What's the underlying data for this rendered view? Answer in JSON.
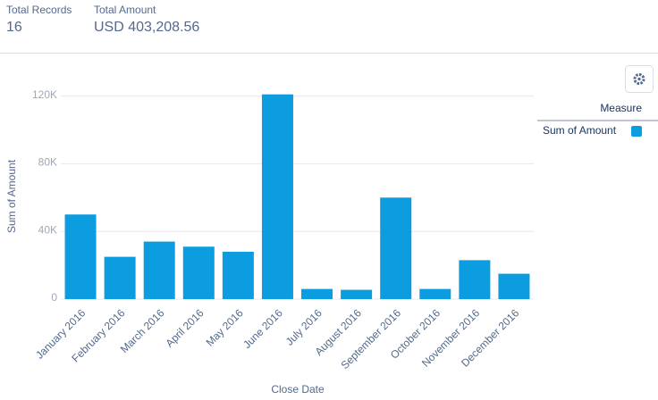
{
  "summary": {
    "records_label": "Total Records",
    "records_value": 16,
    "amount_label": "Total Amount",
    "amount_value": "USD 403,208.56"
  },
  "chart_data": {
    "type": "bar",
    "categories": [
      "January 2016",
      "February 2016",
      "March 2016",
      "April 2016",
      "May 2016",
      "June 2016",
      "July 2016",
      "August 2016",
      "September 2016",
      "October 2016",
      "November 2016",
      "December 2016"
    ],
    "series": [
      {
        "name": "Sum of Amount",
        "color": "#0b9ddf",
        "values": [
          50000,
          25000,
          34000,
          31000,
          28000,
          121000,
          6000,
          5500,
          60000,
          6000,
          23000,
          15000
        ]
      }
    ],
    "x_label": "Close Date",
    "y_label": "Sum of Amount",
    "legend_title": "Measure",
    "legend_position": "right",
    "ylim": [
      0,
      124000
    ],
    "yticks": [
      0,
      {
        "value": 40000,
        "label": "40K"
      },
      {
        "value": 80000,
        "label": "80K"
      },
      {
        "value": 120000,
        "label": "120K"
      }
    ],
    "grid": true
  }
}
